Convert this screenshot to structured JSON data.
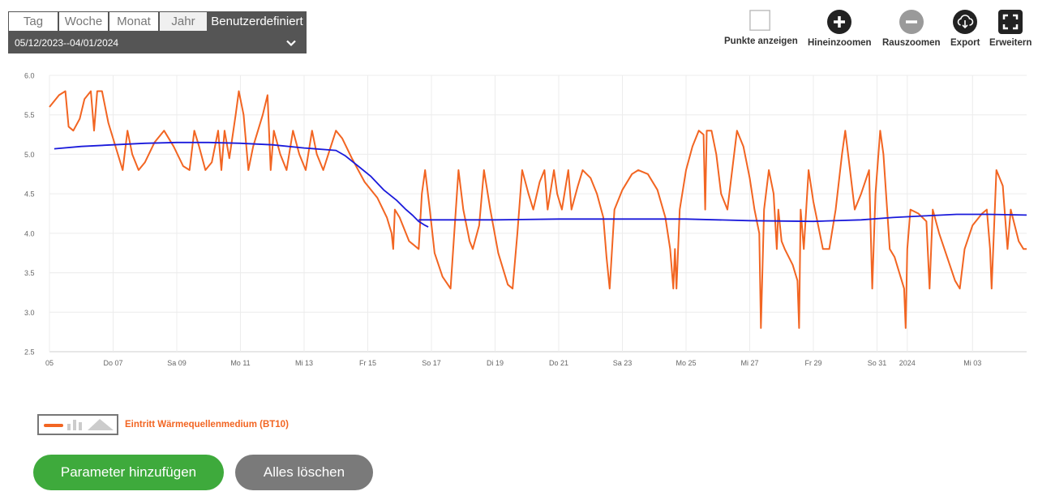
{
  "range": {
    "tabs": [
      "Tag",
      "Woche",
      "Monat",
      "Jahr",
      "Benutzerdefiniert"
    ],
    "active_tab": "Benutzerdefiniert",
    "date_range": "05/12/2023--04/01/2024"
  },
  "toolbar": {
    "show_points": "Punkte anzeigen",
    "zoom_in": "Hineinzoomen",
    "zoom_out": "Rauszoomen",
    "export": "Export",
    "expand": "Erweitern"
  },
  "legend": {
    "label": "Eintritt Wärmequellenmedium (BT10)",
    "color": "#f26522"
  },
  "buttons": {
    "add_parameter": "Parameter hinzufügen",
    "clear_all": "Alles löschen"
  },
  "colors": {
    "series_raw": "#f26522",
    "series_avg": "#1a1adb",
    "add_button": "#3eaa3c",
    "clear_button": "#7a7a7a",
    "icon_dark": "#222222",
    "icon_disabled": "#9a9a9a"
  },
  "chart_data": {
    "type": "line",
    "ylim": [
      2.5,
      6.0
    ],
    "yticks": [
      "2.5",
      "3.0",
      "3.5",
      "4.0",
      "4.5",
      "5.0",
      "5.5",
      "6.0"
    ],
    "xlim": [
      0,
      30.7
    ],
    "xticks": [
      {
        "x": 0,
        "label": "05"
      },
      {
        "x": 2,
        "label": "Do 07"
      },
      {
        "x": 4,
        "label": "Sa 09"
      },
      {
        "x": 6,
        "label": "Mo 11"
      },
      {
        "x": 8,
        "label": "Mi 13"
      },
      {
        "x": 10,
        "label": "Fr 15"
      },
      {
        "x": 12,
        "label": "So 17"
      },
      {
        "x": 14,
        "label": "Di 19"
      },
      {
        "x": 16,
        "label": "Do 21"
      },
      {
        "x": 18,
        "label": "Sa 23"
      },
      {
        "x": 20,
        "label": "Mo 25"
      },
      {
        "x": 22,
        "label": "Mi 27"
      },
      {
        "x": 24,
        "label": "Fr 29"
      },
      {
        "x": 26,
        "label": "So 31"
      },
      {
        "x": 26.95,
        "label": "2024"
      },
      {
        "x": 29,
        "label": "Mi 03"
      }
    ],
    "series": [
      {
        "color": "#f26522",
        "points": [
          [
            0,
            5.6
          ],
          [
            0.3,
            5.75
          ],
          [
            0.5,
            5.8
          ],
          [
            0.6,
            5.35
          ],
          [
            0.75,
            5.3
          ],
          [
            0.95,
            5.45
          ],
          [
            1.1,
            5.7
          ],
          [
            1.3,
            5.8
          ],
          [
            1.4,
            5.3
          ],
          [
            1.5,
            5.8
          ],
          [
            1.65,
            5.8
          ],
          [
            1.85,
            5.4
          ],
          [
            2.3,
            4.8
          ],
          [
            2.45,
            5.3
          ],
          [
            2.6,
            5.0
          ],
          [
            2.8,
            4.8
          ],
          [
            3.0,
            4.9
          ],
          [
            3.3,
            5.15
          ],
          [
            3.6,
            5.3
          ],
          [
            3.9,
            5.1
          ],
          [
            4.2,
            4.85
          ],
          [
            4.4,
            4.8
          ],
          [
            4.55,
            5.3
          ],
          [
            4.7,
            5.1
          ],
          [
            4.9,
            4.8
          ],
          [
            5.1,
            4.9
          ],
          [
            5.3,
            5.3
          ],
          [
            5.4,
            4.8
          ],
          [
            5.5,
            5.3
          ],
          [
            5.65,
            4.95
          ],
          [
            5.85,
            5.5
          ],
          [
            5.95,
            5.8
          ],
          [
            6.1,
            5.5
          ],
          [
            6.25,
            4.8
          ],
          [
            6.4,
            5.1
          ],
          [
            6.55,
            5.3
          ],
          [
            6.7,
            5.5
          ],
          [
            6.85,
            5.75
          ],
          [
            6.95,
            4.8
          ],
          [
            7.05,
            5.3
          ],
          [
            7.25,
            5.0
          ],
          [
            7.45,
            4.8
          ],
          [
            7.65,
            5.3
          ],
          [
            7.85,
            5.0
          ],
          [
            8.05,
            4.8
          ],
          [
            8.25,
            5.3
          ],
          [
            8.4,
            5.0
          ],
          [
            8.6,
            4.8
          ],
          [
            8.8,
            5.05
          ],
          [
            9.0,
            5.3
          ],
          [
            9.2,
            5.2
          ],
          [
            9.5,
            4.95
          ],
          [
            9.9,
            4.65
          ],
          [
            10.3,
            4.45
          ],
          [
            10.6,
            4.2
          ],
          [
            10.75,
            4.0
          ],
          [
            10.8,
            3.8
          ],
          [
            10.85,
            4.3
          ],
          [
            11.0,
            4.2
          ],
          [
            11.3,
            3.9
          ],
          [
            11.6,
            3.8
          ],
          [
            11.7,
            4.5
          ],
          [
            11.8,
            4.8
          ],
          [
            11.95,
            4.3
          ],
          [
            12.1,
            3.75
          ],
          [
            12.35,
            3.45
          ],
          [
            12.6,
            3.3
          ],
          [
            12.7,
            3.9
          ],
          [
            12.85,
            4.8
          ],
          [
            13.0,
            4.3
          ],
          [
            13.2,
            3.9
          ],
          [
            13.3,
            3.8
          ],
          [
            13.5,
            4.1
          ],
          [
            13.65,
            4.8
          ],
          [
            13.85,
            4.3
          ],
          [
            14.1,
            3.75
          ],
          [
            14.4,
            3.35
          ],
          [
            14.55,
            3.3
          ],
          [
            14.7,
            4.0
          ],
          [
            14.85,
            4.8
          ],
          [
            15.05,
            4.5
          ],
          [
            15.2,
            4.3
          ],
          [
            15.4,
            4.65
          ],
          [
            15.55,
            4.8
          ],
          [
            15.65,
            4.3
          ],
          [
            15.85,
            4.8
          ],
          [
            15.95,
            4.5
          ],
          [
            16.1,
            4.3
          ],
          [
            16.3,
            4.8
          ],
          [
            16.4,
            4.3
          ],
          [
            16.6,
            4.6
          ],
          [
            16.75,
            4.8
          ],
          [
            17.0,
            4.7
          ],
          [
            17.2,
            4.5
          ],
          [
            17.4,
            4.2
          ],
          [
            17.5,
            3.7
          ],
          [
            17.6,
            3.3
          ],
          [
            17.75,
            4.3
          ],
          [
            18.0,
            4.55
          ],
          [
            18.3,
            4.75
          ],
          [
            18.5,
            4.8
          ],
          [
            18.8,
            4.75
          ],
          [
            19.1,
            4.55
          ],
          [
            19.35,
            4.2
          ],
          [
            19.5,
            3.8
          ],
          [
            19.6,
            3.3
          ],
          [
            19.65,
            3.8
          ],
          [
            19.7,
            3.3
          ],
          [
            19.8,
            4.3
          ],
          [
            20.0,
            4.8
          ],
          [
            20.2,
            5.1
          ],
          [
            20.4,
            5.3
          ],
          [
            20.55,
            5.25
          ],
          [
            20.6,
            4.3
          ],
          [
            20.65,
            5.3
          ],
          [
            20.8,
            5.3
          ],
          [
            20.95,
            5.0
          ],
          [
            21.1,
            4.5
          ],
          [
            21.3,
            4.3
          ],
          [
            21.45,
            4.8
          ],
          [
            21.6,
            5.3
          ],
          [
            21.8,
            5.1
          ],
          [
            22.0,
            4.7
          ],
          [
            22.15,
            4.3
          ],
          [
            22.3,
            4.0
          ],
          [
            22.35,
            2.8
          ],
          [
            22.45,
            4.3
          ],
          [
            22.6,
            4.8
          ],
          [
            22.75,
            4.5
          ],
          [
            22.85,
            3.8
          ],
          [
            22.9,
            4.3
          ],
          [
            23.0,
            3.9
          ],
          [
            23.1,
            3.8
          ],
          [
            23.35,
            3.6
          ],
          [
            23.5,
            3.4
          ],
          [
            23.55,
            2.8
          ],
          [
            23.6,
            4.3
          ],
          [
            23.7,
            3.8
          ],
          [
            23.85,
            4.8
          ],
          [
            24.0,
            4.4
          ],
          [
            24.15,
            4.1
          ],
          [
            24.3,
            3.8
          ],
          [
            24.5,
            3.8
          ],
          [
            24.7,
            4.3
          ],
          [
            24.9,
            5.0
          ],
          [
            25.0,
            5.3
          ],
          [
            25.15,
            4.8
          ],
          [
            25.3,
            4.3
          ],
          [
            25.5,
            4.5
          ],
          [
            25.75,
            4.8
          ],
          [
            25.85,
            3.3
          ],
          [
            25.95,
            4.5
          ],
          [
            26.1,
            5.3
          ],
          [
            26.2,
            5.0
          ],
          [
            26.4,
            3.8
          ],
          [
            26.55,
            3.7
          ],
          [
            26.7,
            3.5
          ],
          [
            26.85,
            3.3
          ],
          [
            26.9,
            2.8
          ],
          [
            26.95,
            3.8
          ],
          [
            27.05,
            4.3
          ],
          [
            27.3,
            4.25
          ],
          [
            27.55,
            4.15
          ],
          [
            27.65,
            3.3
          ],
          [
            27.75,
            4.3
          ],
          [
            27.95,
            4.0
          ],
          [
            28.2,
            3.7
          ],
          [
            28.45,
            3.4
          ],
          [
            28.6,
            3.3
          ],
          [
            28.75,
            3.8
          ],
          [
            29.0,
            4.1
          ],
          [
            29.3,
            4.25
          ],
          [
            29.45,
            4.3
          ],
          [
            29.55,
            3.8
          ],
          [
            29.6,
            3.3
          ],
          [
            29.75,
            4.8
          ],
          [
            29.95,
            4.6
          ],
          [
            30.1,
            3.8
          ],
          [
            30.2,
            4.3
          ],
          [
            30.45,
            3.9
          ],
          [
            30.6,
            3.8
          ],
          [
            30.7,
            3.8
          ]
        ]
      },
      {
        "color": "#1a1adb",
        "points": [
          [
            0.15,
            5.07
          ],
          [
            1,
            5.1
          ],
          [
            2,
            5.12
          ],
          [
            3,
            5.14
          ],
          [
            4,
            5.15
          ],
          [
            5,
            5.15
          ],
          [
            6,
            5.14
          ],
          [
            7,
            5.12
          ],
          [
            8,
            5.08
          ],
          [
            9,
            5.05
          ],
          [
            9.3,
            4.98
          ],
          [
            9.7,
            4.85
          ],
          [
            10.1,
            4.72
          ],
          [
            10.5,
            4.55
          ],
          [
            10.9,
            4.42
          ],
          [
            11.2,
            4.3
          ],
          [
            11.4,
            4.23
          ],
          [
            11.6,
            4.15
          ],
          [
            11.8,
            4.1
          ],
          [
            11.9,
            4.08
          ]
        ]
      },
      {
        "color": "#1a1adb",
        "points": [
          [
            11.6,
            4.17
          ],
          [
            14,
            4.17
          ],
          [
            16,
            4.18
          ],
          [
            18,
            4.18
          ],
          [
            20,
            4.18
          ],
          [
            22,
            4.16
          ],
          [
            24,
            4.15
          ],
          [
            25.5,
            4.17
          ],
          [
            26.5,
            4.2
          ],
          [
            27.5,
            4.22
          ],
          [
            28.5,
            4.24
          ],
          [
            29.5,
            4.24
          ],
          [
            30.7,
            4.23
          ]
        ]
      }
    ]
  }
}
